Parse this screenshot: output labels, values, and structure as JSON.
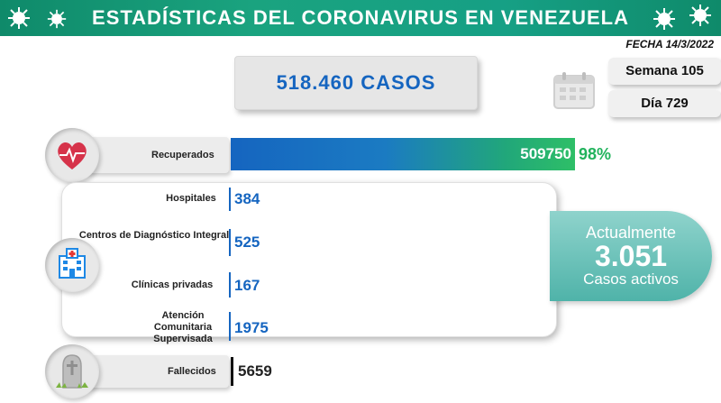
{
  "header": {
    "title": "ESTADÍSTICAS DEL CORONAVIRUS EN VENEZUELA"
  },
  "date": "FECHA 14/3/2022",
  "cases": {
    "label": "518.460 CASOS"
  },
  "calendar": {
    "week": "Semana 105",
    "day": "Día 729",
    "icon": "calendar-icon"
  },
  "recovered": {
    "label": "Recuperados",
    "value": "509750",
    "percent": "98%",
    "icon": "heart-pulse-icon"
  },
  "hospitals": {
    "icon": "hospital-icon",
    "rows": [
      {
        "label": "Hospitales",
        "value": "384"
      },
      {
        "label": "Centros de Diagnóstico Integral",
        "value": "525"
      },
      {
        "label": "Clínicas privadas",
        "value": "167"
      },
      {
        "label": "Atención Comunitaria Supervisada",
        "value": "1975"
      }
    ]
  },
  "active": {
    "line1": "Actualmente",
    "number": "3.051",
    "line3": "Casos activos"
  },
  "deaths": {
    "label": "Fallecidos",
    "value": "5659",
    "icon": "tombstone-icon"
  },
  "colors": {
    "header": "#16a085",
    "blue": "#1565c0",
    "green": "#22b35d",
    "teal": "#4fb3a9"
  }
}
